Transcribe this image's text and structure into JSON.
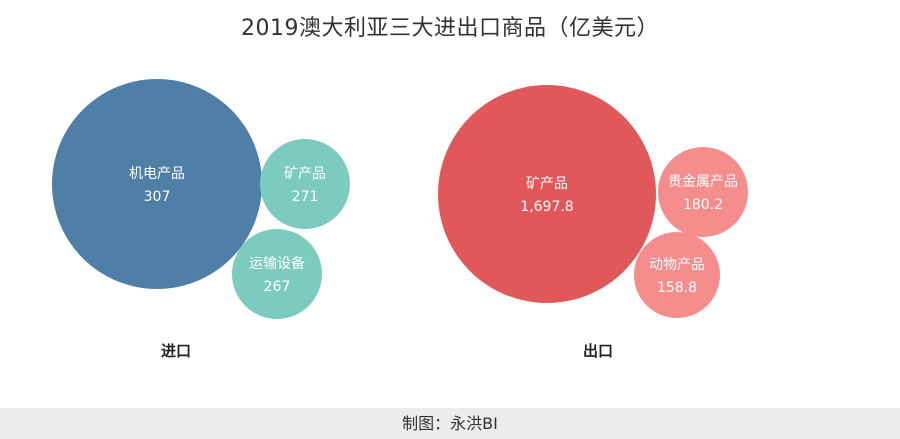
{
  "chart_title": "2019澳大利亚三大进出口商品（亿美元）",
  "footer": "制图：永洪BI",
  "colors": {
    "import_main": "#4f7ea6",
    "import_other": "#7ccbbf",
    "export_main": "#e0585a",
    "export_other": "#f48d8c",
    "label": "#ffffff",
    "section_label": "#222222",
    "title": "#333333",
    "footer_bg": "#ececec"
  },
  "chart_data": [
    {
      "type": "bubble",
      "group": "进口",
      "items": [
        {
          "name": "机电产品",
          "value": 307,
          "display": "307"
        },
        {
          "name": "矿产品",
          "value": 271,
          "display": "271"
        },
        {
          "name": "运输设备",
          "value": 267,
          "display": "267"
        }
      ]
    },
    {
      "type": "bubble",
      "group": "出口",
      "items": [
        {
          "name": "矿产品",
          "value": 1697.8,
          "display": "1,697.8"
        },
        {
          "name": "贵金属产品",
          "value": 180.2,
          "display": "180.2"
        },
        {
          "name": "动物产品",
          "value": 158.8,
          "display": "158.8"
        }
      ]
    }
  ]
}
